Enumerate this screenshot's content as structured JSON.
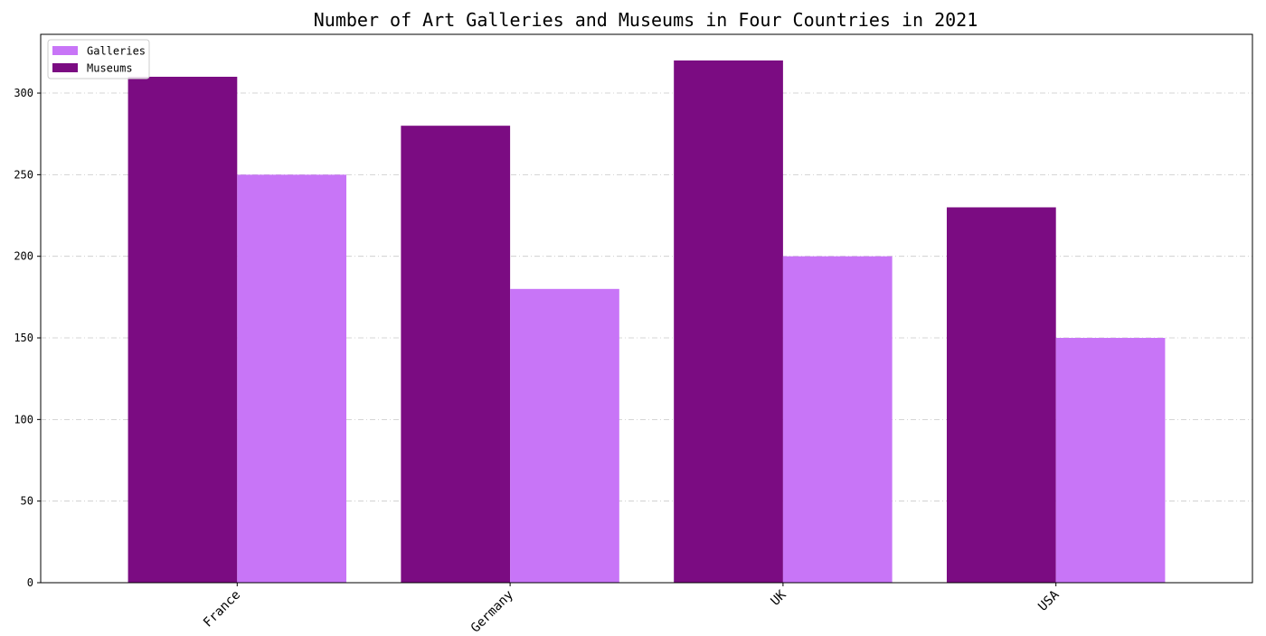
{
  "chart_data": {
    "type": "bar",
    "title": "Number of Art Galleries and Museums in Four Countries in 2021",
    "xlabel": "",
    "ylabel": "",
    "categories": [
      "France",
      "Germany",
      "UK",
      "USA"
    ],
    "series": [
      {
        "name": "Museums",
        "values": [
          310,
          280,
          320,
          230
        ],
        "color": "#7b0c82"
      },
      {
        "name": "Galleries",
        "values": [
          250,
          180,
          200,
          150
        ],
        "color": "#c875f7"
      }
    ],
    "legend_order": [
      "Galleries",
      "Museums"
    ],
    "ylim": [
      0,
      336
    ],
    "yticks": [
      0,
      50,
      100,
      150,
      200,
      250,
      300
    ],
    "grid": "horizontal dash-dot",
    "legend": "top-left"
  }
}
